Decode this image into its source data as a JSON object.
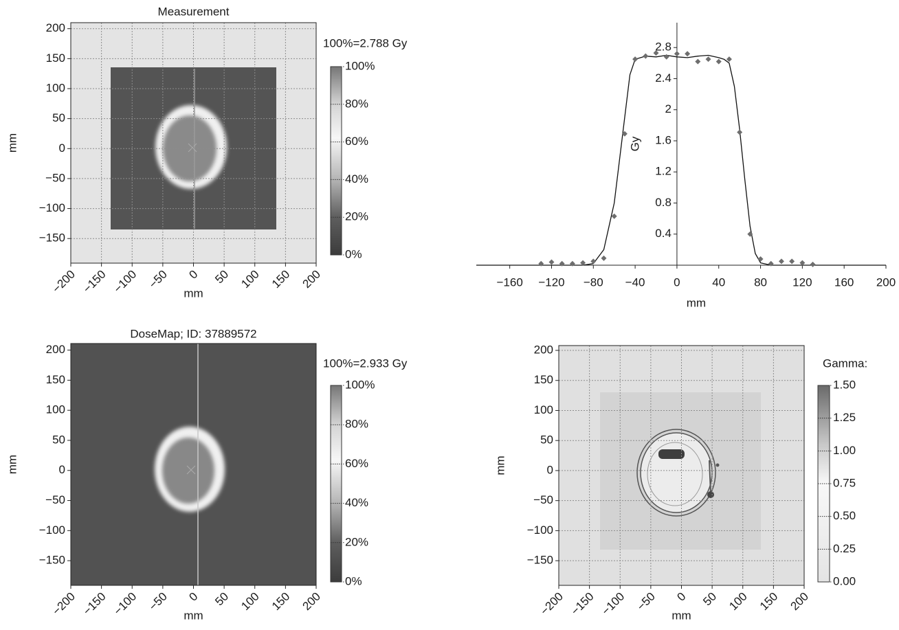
{
  "chart_data": [
    {
      "type": "heatmap",
      "title": "Measurement",
      "xlabel": "mm",
      "ylabel": "mm",
      "xlim": [
        -200,
        200
      ],
      "ylim": [
        -191,
        210
      ],
      "grid": true,
      "xticks": [
        {
          "value": -200,
          "label": "−200"
        },
        {
          "value": -150,
          "label": "−150"
        },
        {
          "value": -100,
          "label": "−100"
        },
        {
          "value": -50,
          "label": "−50"
        },
        0,
        50,
        100,
        150,
        200
      ],
      "yticks": [
        {
          "value": -150,
          "label": "−150"
        },
        {
          "value": -100,
          "label": "−100"
        },
        {
          "value": -50,
          "label": "−50"
        },
        0,
        50,
        100,
        150,
        200
      ],
      "colorbar": {
        "label": "100%=2.788 Gy",
        "lim": [
          0,
          100
        ],
        "ticks": [
          {
            "value": 0,
            "label": "0%"
          },
          {
            "value": 20,
            "label": "20%"
          },
          {
            "value": 40,
            "label": "40%"
          },
          {
            "value": 60,
            "label": "60%"
          },
          {
            "value": 80,
            "label": "80%"
          },
          {
            "value": 100,
            "label": "100%"
          }
        ]
      }
    },
    {
      "type": "line",
      "xlabel": "mm",
      "ylabel": "Gy",
      "xlim": [
        -192,
        200
      ],
      "ylim": [
        0,
        3.12
      ],
      "xticks": [
        {
          "value": -160,
          "label": "−160"
        },
        {
          "value": -120,
          "label": "−120"
        },
        {
          "value": -80,
          "label": "−80"
        },
        {
          "value": -40,
          "label": "−40"
        },
        0,
        40,
        80,
        120,
        160,
        200
      ],
      "yticks": [
        0.4,
        0.8,
        1.2,
        1.6,
        2.0,
        2.4,
        2.8
      ],
      "series": [
        {
          "mode": "line",
          "color": "#111111",
          "x": [
            -192,
            -90,
            -80,
            -70,
            -60,
            -50,
            -45,
            -40,
            -30,
            -20,
            -10,
            0,
            10,
            20,
            30,
            40,
            45,
            50,
            55,
            60,
            65,
            70,
            75,
            80,
            90,
            200
          ],
          "values": [
            0,
            0,
            0.02,
            0.2,
            0.8,
            1.9,
            2.45,
            2.65,
            2.69,
            2.68,
            2.7,
            2.68,
            2.67,
            2.69,
            2.7,
            2.67,
            2.65,
            2.6,
            2.3,
            1.75,
            1.1,
            0.5,
            0.15,
            0.03,
            0,
            0
          ]
        },
        {
          "mode": "scatter",
          "color": "#6e6e6e",
          "x": [
            -130,
            -120,
            -110,
            -100,
            -90,
            -80,
            -70,
            -60,
            -50,
            -40,
            -30,
            -20,
            -10,
            0,
            10,
            20,
            30,
            40,
            50,
            60,
            70,
            80,
            90,
            100,
            110,
            120,
            130
          ],
          "values": [
            0.02,
            0.04,
            0.02,
            0.02,
            0.03,
            0.05,
            0.09,
            0.63,
            1.69,
            2.65,
            2.69,
            2.73,
            2.68,
            2.72,
            2.72,
            2.62,
            2.65,
            2.62,
            2.65,
            1.71,
            0.4,
            0.08,
            0.02,
            0.05,
            0.05,
            0.03,
            0.01
          ]
        }
      ]
    },
    {
      "type": "heatmap",
      "title": "DoseMap; ID: 37889572",
      "xlabel": "mm",
      "ylabel": "mm",
      "xlim": [
        -200,
        200
      ],
      "ylim": [
        -191,
        211
      ],
      "grid": false,
      "xticks": [
        {
          "value": -200,
          "label": "−200"
        },
        {
          "value": -150,
          "label": "−150"
        },
        {
          "value": -100,
          "label": "−100"
        },
        {
          "value": -50,
          "label": "−50"
        },
        0,
        50,
        100,
        150,
        200
      ],
      "yticks": [
        {
          "value": -150,
          "label": "−150"
        },
        {
          "value": -100,
          "label": "−100"
        },
        {
          "value": -50,
          "label": "−50"
        },
        0,
        50,
        100,
        150,
        200
      ],
      "colorbar": {
        "label": "100%=2.933 Gy",
        "lim": [
          0,
          100
        ],
        "ticks": [
          {
            "value": 0,
            "label": "0%"
          },
          {
            "value": 20,
            "label": "20%"
          },
          {
            "value": 40,
            "label": "40%"
          },
          {
            "value": 60,
            "label": "60%"
          },
          {
            "value": 80,
            "label": "80%"
          },
          {
            "value": 100,
            "label": "100%"
          }
        ]
      }
    },
    {
      "type": "heatmap",
      "xlabel": "mm",
      "ylabel": "mm",
      "xlim": [
        -200,
        200
      ],
      "ylim": [
        -191,
        208
      ],
      "grid": true,
      "xticks": [
        {
          "value": -200,
          "label": "−200"
        },
        {
          "value": -150,
          "label": "−150"
        },
        {
          "value": -100,
          "label": "−100"
        },
        {
          "value": -50,
          "label": "−50"
        },
        0,
        50,
        100,
        150,
        200
      ],
      "yticks": [
        {
          "value": -150,
          "label": "−150"
        },
        {
          "value": -100,
          "label": "−100"
        },
        {
          "value": -50,
          "label": "−50"
        },
        0,
        50,
        100,
        150,
        200
      ],
      "colorbar": {
        "label": "Gamma:",
        "lim": [
          0,
          1.5
        ],
        "ticks": [
          {
            "value": 0,
            "label": "0.00"
          },
          {
            "value": 0.25,
            "label": "0.25"
          },
          {
            "value": 0.5,
            "label": "0.50"
          },
          {
            "value": 0.75,
            "label": "0.75"
          },
          {
            "value": 1,
            "label": "1.00"
          },
          {
            "value": 1.25,
            "label": "1.25"
          },
          {
            "value": 1.5,
            "label": "1.50"
          }
        ]
      }
    }
  ]
}
